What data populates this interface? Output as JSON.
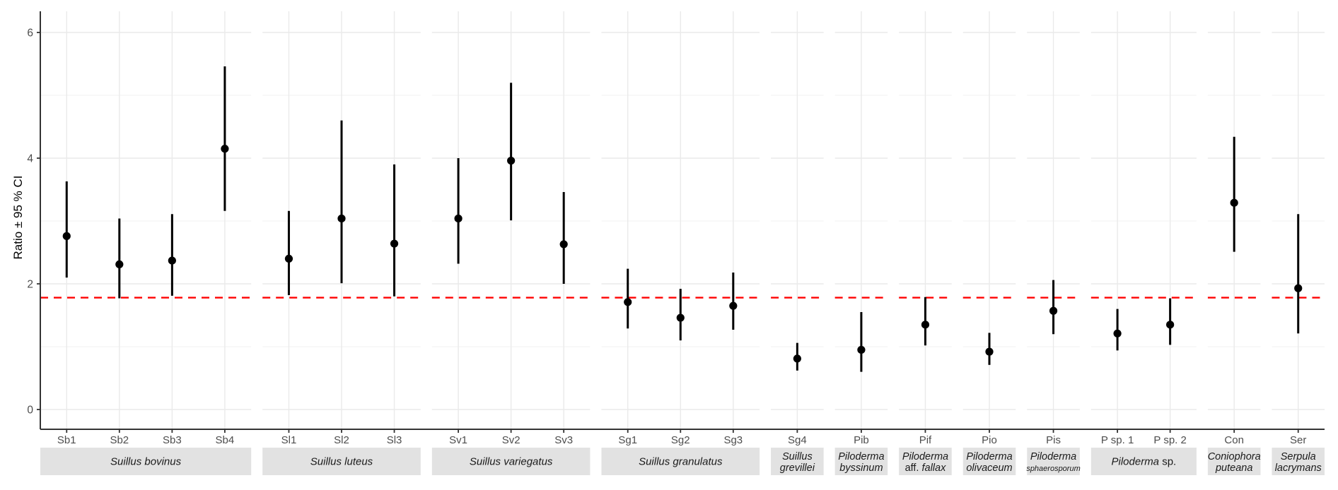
{
  "chart_data": {
    "type": "scatter",
    "subtype": "point-range (mean with 95% confidence interval whiskers)",
    "title": "",
    "xlabel": "",
    "ylabel": "Ratio ± 95 % CI",
    "yticks": [
      0,
      2,
      4,
      6
    ],
    "ylim": [
      -0.32,
      6.38
    ],
    "grid": "on",
    "legend": "none",
    "point_color": "#000000",
    "errorbar_color": "#000000",
    "axis_color": "#333333",
    "tick_text_color": "#4d4d4d",
    "gridline_color": "#eaeaea",
    "minor_gridline_color": "#f2f2f2",
    "strip_fill": "#e2e2e2",
    "strip_text_color": "#1a1a1a",
    "reference_line": {
      "value": 1.78,
      "color": "#FF0000",
      "style": "dashed"
    },
    "groups": [
      {
        "name": "Suillus bovinus",
        "label_lines": [
          [
            {
              "text": "Suillus bovinus",
              "italic": true
            }
          ]
        ],
        "strains": [
          {
            "label": "Sb1",
            "mean": 2.76,
            "lo": 2.1,
            "hi": 3.63
          },
          {
            "label": "Sb2",
            "mean": 2.31,
            "lo": 1.77,
            "hi": 3.04
          },
          {
            "label": "Sb3",
            "mean": 2.37,
            "lo": 1.81,
            "hi": 3.11
          },
          {
            "label": "Sb4",
            "mean": 4.15,
            "lo": 3.16,
            "hi": 5.46
          }
        ]
      },
      {
        "name": "Suillus luteus",
        "label_lines": [
          [
            {
              "text": "Suillus luteus",
              "italic": true
            }
          ]
        ],
        "strains": [
          {
            "label": "Sl1",
            "mean": 2.4,
            "lo": 1.82,
            "hi": 3.16
          },
          {
            "label": "Sl2",
            "mean": 3.04,
            "lo": 2.01,
            "hi": 4.6
          },
          {
            "label": "Sl3",
            "mean": 2.64,
            "lo": 1.8,
            "hi": 3.9
          }
        ]
      },
      {
        "name": "Suillus variegatus",
        "label_lines": [
          [
            {
              "text": "Suillus variegatus",
              "italic": true
            }
          ]
        ],
        "strains": [
          {
            "label": "Sv1",
            "mean": 3.04,
            "lo": 2.32,
            "hi": 4.0
          },
          {
            "label": "Sv2",
            "mean": 3.96,
            "lo": 3.01,
            "hi": 5.2
          },
          {
            "label": "Sv3",
            "mean": 2.63,
            "lo": 2.0,
            "hi": 3.46
          }
        ]
      },
      {
        "name": "Suillus granulatus",
        "label_lines": [
          [
            {
              "text": "Suillus granulatus",
              "italic": true
            }
          ]
        ],
        "strains": [
          {
            "label": "Sg1",
            "mean": 1.71,
            "lo": 1.29,
            "hi": 2.24
          },
          {
            "label": "Sg2",
            "mean": 1.46,
            "lo": 1.1,
            "hi": 1.92
          },
          {
            "label": "Sg3",
            "mean": 1.65,
            "lo": 1.27,
            "hi": 2.18
          }
        ]
      },
      {
        "name": "Suillus grevillei",
        "label_lines": [
          [
            {
              "text": "Suillus",
              "italic": true
            }
          ],
          [
            {
              "text": "grevillei",
              "italic": true
            }
          ]
        ],
        "strains": [
          {
            "label": "Sg4",
            "mean": 0.81,
            "lo": 0.62,
            "hi": 1.06
          }
        ]
      },
      {
        "name": "Piloderma byssinum",
        "label_lines": [
          [
            {
              "text": "Piloderma",
              "italic": true
            }
          ],
          [
            {
              "text": "byssinum",
              "italic": true
            }
          ]
        ],
        "strains": [
          {
            "label": "Pib",
            "mean": 0.95,
            "lo": 0.6,
            "hi": 1.55
          }
        ]
      },
      {
        "name": "Piloderma aff. fallax",
        "label_lines": [
          [
            {
              "text": "Piloderma",
              "italic": true
            }
          ],
          [
            {
              "text": "aff. ",
              "italic": false
            },
            {
              "text": "fallax",
              "italic": true
            }
          ]
        ],
        "strains": [
          {
            "label": "Pif",
            "mean": 1.35,
            "lo": 1.02,
            "hi": 1.79
          }
        ]
      },
      {
        "name": "Piloderma olivaceum",
        "label_lines": [
          [
            {
              "text": "Piloderma",
              "italic": true
            }
          ],
          [
            {
              "text": "olivaceum",
              "italic": true
            }
          ]
        ],
        "strains": [
          {
            "label": "Pio",
            "mean": 0.92,
            "lo": 0.71,
            "hi": 1.22
          }
        ]
      },
      {
        "name": "Piloderma sphaerosporum",
        "label_lines": [
          [
            {
              "text": "Piloderma",
              "italic": true
            }
          ],
          [
            {
              "text": "sphaerosporum",
              "italic": true,
              "small": true
            }
          ]
        ],
        "strains": [
          {
            "label": "Pis",
            "mean": 1.57,
            "lo": 1.2,
            "hi": 2.06
          }
        ]
      },
      {
        "name": "Piloderma sp.",
        "label_lines": [
          [
            {
              "text": "Piloderma",
              "italic": true
            },
            {
              "text": " sp.",
              "italic": false
            }
          ]
        ],
        "strains": [
          {
            "label": "P sp. 1",
            "mean": 1.21,
            "lo": 0.94,
            "hi": 1.6
          },
          {
            "label": "P sp. 2",
            "mean": 1.35,
            "lo": 1.03,
            "hi": 1.77
          }
        ]
      },
      {
        "name": "Coniophora puteana",
        "label_lines": [
          [
            {
              "text": "Coniophora",
              "italic": true
            }
          ],
          [
            {
              "text": "puteana",
              "italic": true
            }
          ]
        ],
        "strains": [
          {
            "label": "Con",
            "mean": 3.29,
            "lo": 2.51,
            "hi": 4.34
          }
        ]
      },
      {
        "name": "Serpula lacrymans",
        "label_lines": [
          [
            {
              "text": "Serpula",
              "italic": true
            }
          ],
          [
            {
              "text": "lacrymans",
              "italic": true
            }
          ]
        ],
        "strains": [
          {
            "label": "Ser",
            "mean": 1.93,
            "lo": 1.21,
            "hi": 3.11
          }
        ]
      }
    ]
  }
}
